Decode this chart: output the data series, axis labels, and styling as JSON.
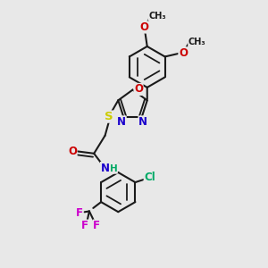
{
  "bg_color": "#e8e8e8",
  "bond_color": "#1a1a1a",
  "bond_width": 1.5,
  "atom_colors": {
    "N": "#1a00cc",
    "O": "#cc0000",
    "S": "#cccc00",
    "F": "#cc00cc",
    "Cl": "#00aa66",
    "H": "#00aa66",
    "C": "#1a1a1a"
  },
  "font_size": 8.5,
  "fig_width": 3.0,
  "fig_height": 3.0,
  "dpi": 100
}
